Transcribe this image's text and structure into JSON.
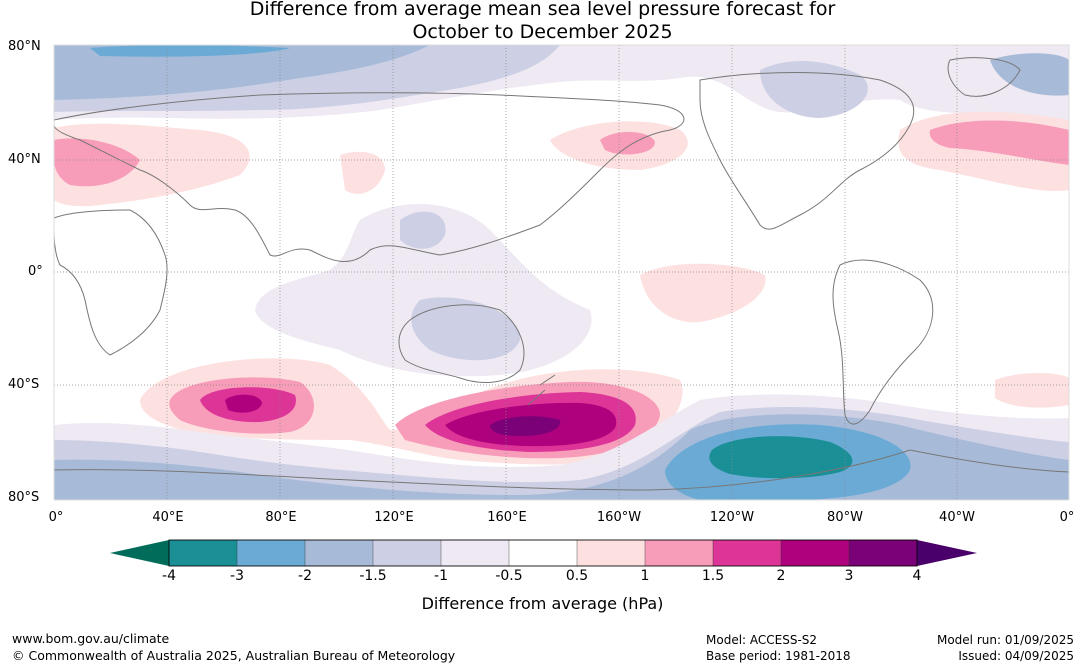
{
  "title_line1": "Difference from average mean sea level pressure forecast for",
  "title_line2": "October to December 2025",
  "lat_labels": [
    "80°N",
    "40°N",
    "0°",
    "40°S",
    "80°S"
  ],
  "lon_labels": [
    "0°",
    "40°E",
    "80°E",
    "120°E",
    "160°E",
    "160°W",
    "120°W",
    "80°W",
    "40°W",
    "0°"
  ],
  "colorbar": {
    "ticks": [
      "-4",
      "-3",
      "-2",
      "-1.5",
      "-1",
      "-0.5",
      "0.5",
      "1",
      "1.5",
      "2",
      "3",
      "4"
    ],
    "colors": [
      "#1a9096",
      "#6aaad4",
      "#a7bbd9",
      "#cdd0e4",
      "#efe9f3",
      "#ffffff",
      "#fde0e0",
      "#f79cb9",
      "#dd3497",
      "#ae017e",
      "#7a0177"
    ],
    "extend_low_color": "#016c59",
    "extend_high_color": "#49006a",
    "title": "Difference from average (hPa)"
  },
  "footer": {
    "website": "www.bom.gov.au/climate",
    "copyright": "© Commonwealth of Australia 2025, Australian Bureau of Meteorology",
    "model": "Model: ACCESS-S2",
    "base_period": "Base period: 1981-2018",
    "model_run": "Model run: 01/09/2025",
    "issued": "Issued: 04/09/2025"
  }
}
